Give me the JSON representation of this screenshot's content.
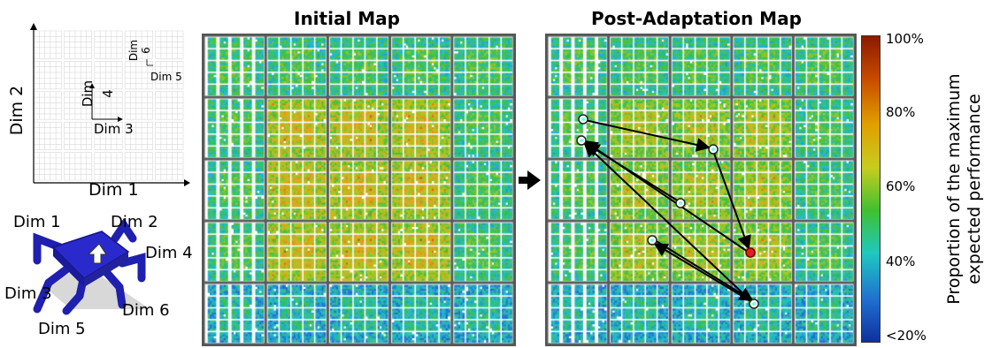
{
  "titles": {
    "initial": "Initial Map",
    "post": "Post-Adaptation Map"
  },
  "schematic": {
    "dim1": "Dim 1",
    "dim2": "Dim 2",
    "dim3": "Dim 3",
    "dim4": "Dim 4",
    "dim5": "Dim 5",
    "dim6": "Dim 6"
  },
  "robot": {
    "dim1": "Dim 1",
    "dim2": "Dim 2",
    "dim3": "Dim 3",
    "dim4": "Dim 4",
    "dim5": "Dim 5",
    "dim6": "Dim 6"
  },
  "colorbar": {
    "ticks": [
      "100%",
      "80%",
      "60%",
      "40%",
      "<20%"
    ],
    "label_line1": "Proportion of the maximum",
    "label_line2": "expected performance",
    "colors": [
      "#8b1a00",
      "#c84b00",
      "#e0a000",
      "#c8cc20",
      "#40c030",
      "#20c8c0",
      "#2070d0",
      "#1030a0"
    ]
  },
  "arrow_icon": "right-arrow-icon"
}
